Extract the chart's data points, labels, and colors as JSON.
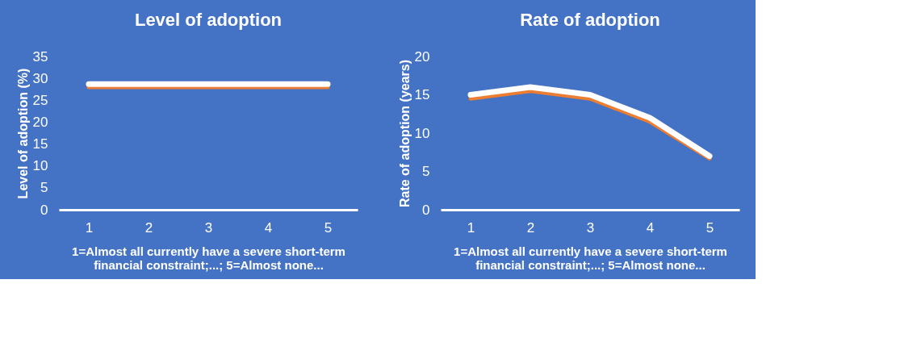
{
  "chart_data": [
    {
      "type": "line",
      "title": "Level of adoption",
      "xlabel": "1=Almost all currently have a severe short-term financial constraint;...; 5=Almost none...",
      "ylabel": "Level of adoption (%)",
      "categories": [
        "1",
        "2",
        "3",
        "4",
        "5"
      ],
      "series": [
        {
          "color": "#ed7d31",
          "values": [
            28,
            28,
            28,
            28,
            28
          ]
        },
        {
          "color": "#ffffff",
          "values": [
            28.7,
            28.7,
            28.7,
            28.7,
            28.7
          ]
        }
      ],
      "ylim": [
        0,
        35
      ],
      "yticks": [
        0,
        5,
        10,
        15,
        20,
        25,
        30,
        35
      ],
      "grid": false,
      "marker": "none",
      "line_style": "solid"
    },
    {
      "type": "line",
      "title": "Rate of adoption",
      "xlabel": "1=Almost all currently have a severe short-term financial constraint;...; 5=Almost none...",
      "ylabel": "Rate of adoption (years)",
      "categories": [
        "1",
        "2",
        "3",
        "4",
        "5"
      ],
      "series": [
        {
          "color": "#ed7d31",
          "values": [
            14.5,
            15.5,
            14.5,
            11.5,
            6.7
          ]
        },
        {
          "color": "#ffffff",
          "values": [
            15,
            16,
            15,
            12,
            7
          ]
        }
      ],
      "ylim": [
        0,
        20
      ],
      "yticks": [
        0,
        5,
        10,
        15,
        20
      ],
      "grid": false,
      "marker": "none",
      "line_style": "solid"
    }
  ]
}
